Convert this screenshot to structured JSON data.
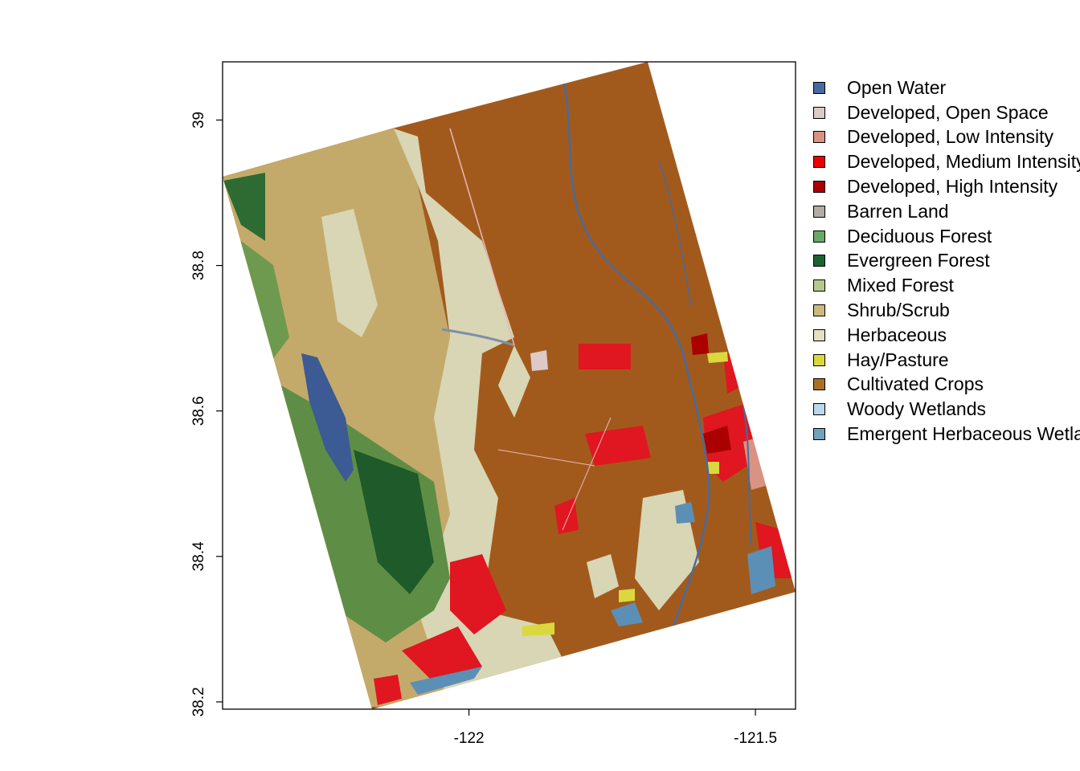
{
  "map": {
    "x_ticks": [
      "-122",
      "-121.5"
    ],
    "y_ticks": [
      "38.2",
      "38.4",
      "38.6",
      "38.8",
      "39"
    ],
    "x_range": [
      -122.43,
      -121.43
    ],
    "y_range": [
      38.19,
      39.08
    ]
  },
  "legend": {
    "items": [
      {
        "label": "Open Water",
        "color": "#476BA0"
      },
      {
        "label": "Developed, Open Space",
        "color": "#DDC9C9"
      },
      {
        "label": "Developed, Low Intensity",
        "color": "#D89382"
      },
      {
        "label": "Developed, Medium Intensity",
        "color": "#EE0000"
      },
      {
        "label": "Developed, High Intensity",
        "color": "#AA0000"
      },
      {
        "label": "Barren Land",
        "color": "#B2ADA3"
      },
      {
        "label": "Deciduous Forest",
        "color": "#68AA63"
      },
      {
        "label": "Evergreen Forest",
        "color": "#1C6330"
      },
      {
        "label": "Mixed Forest",
        "color": "#B5C98E"
      },
      {
        "label": "Shrub/Scrub",
        "color": "#CCBA7C"
      },
      {
        "label": "Herbaceous",
        "color": "#E2E2C1"
      },
      {
        "label": "Hay/Pasture",
        "color": "#DBD83D"
      },
      {
        "label": "Cultivated Crops",
        "color": "#AA7028"
      },
      {
        "label": "Woody Wetlands",
        "color": "#BAD8EA"
      },
      {
        "label": "Emergent Herbaceous Wetlands",
        "color": "#70A3BA"
      }
    ]
  }
}
